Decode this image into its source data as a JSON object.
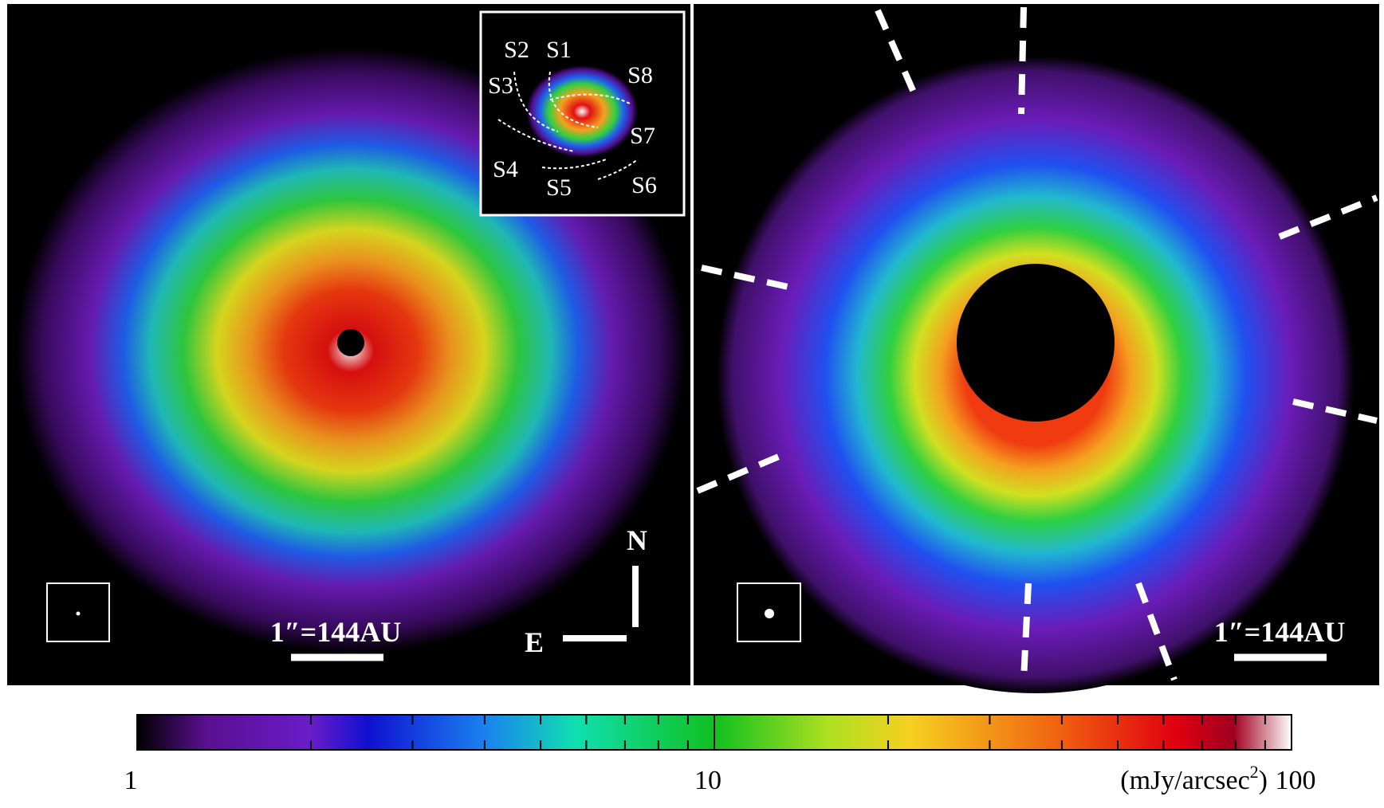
{
  "left_panel": {
    "inset_labels": [
      "S2",
      "S1",
      "S8",
      "S3",
      "S7",
      "S4",
      "S5",
      "S6"
    ],
    "scale_label": "1″=144AU",
    "compass": {
      "north": "N",
      "east": "E"
    }
  },
  "right_panel": {
    "scale_label": "1″=144AU"
  },
  "colorbar": {
    "range": [
      1,
      100
    ],
    "log": true,
    "ticks": [
      1,
      10,
      100
    ],
    "minor_ticks": [
      2,
      3,
      4,
      5,
      6,
      7,
      8,
      9,
      20,
      30,
      40,
      50,
      60,
      70,
      80,
      90
    ],
    "unit_prefix": "(mJy/arcsec",
    "unit_exponent": "2",
    "unit_suffix": ")"
  }
}
